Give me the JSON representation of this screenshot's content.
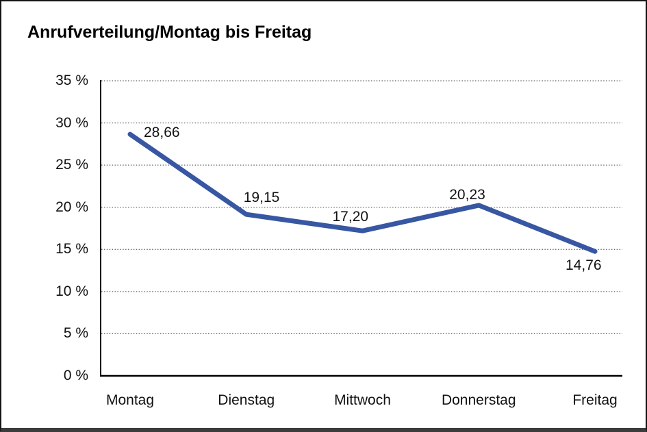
{
  "window": {
    "background": "#ffffff",
    "border_color": "#141414",
    "bottom_bar_color": "#3b3b3b"
  },
  "chart_data": {
    "type": "line",
    "title": "Anrufverteilung/Montag bis Freitag",
    "categories": [
      "Montag",
      "Dienstag",
      "Mittwoch",
      "Donnerstag",
      "Freitag"
    ],
    "series": [
      {
        "name": "Anrufverteilung",
        "values": [
          28.66,
          19.15,
          17.2,
          20.23,
          14.76
        ]
      }
    ],
    "data_labels": [
      "28,66",
      "19,15",
      "17,20",
      "20,23",
      "14,76"
    ],
    "y_ticks": [
      {
        "value": 35,
        "label": "35 %"
      },
      {
        "value": 30,
        "label": "30 %"
      },
      {
        "value": 25,
        "label": "25 %"
      },
      {
        "value": 20,
        "label": "20 %"
      },
      {
        "value": 15,
        "label": "15 %"
      },
      {
        "value": 10,
        "label": "10 %"
      },
      {
        "value": 5,
        "label": "5 %"
      },
      {
        "value": 0,
        "label": "0 %"
      }
    ],
    "ylim": [
      0,
      35
    ],
    "xlabel": "",
    "ylabel": "",
    "unit": "%",
    "decimal_separator": ",",
    "grid": "horizontal-dotted",
    "legend": "none",
    "line_color": "#3757a3",
    "line_width": 7,
    "grid_color": "#3c3c3c",
    "axis_color": "#000000",
    "text_color": "#111111"
  }
}
